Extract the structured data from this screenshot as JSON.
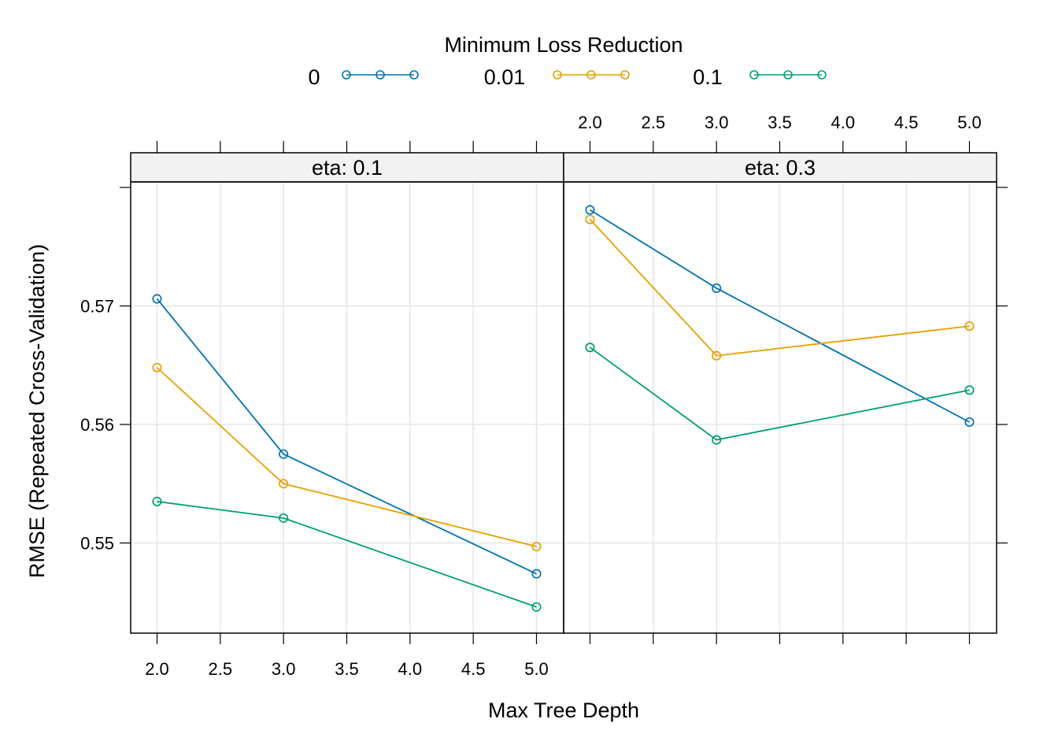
{
  "chart_data": {
    "type": "line",
    "xlabel": "Max Tree Depth",
    "ylabel": "RMSE (Repeated Cross-Validation)",
    "xlim": [
      1.8,
      5.2
    ],
    "ylim": [
      0.5416,
      0.5801
    ],
    "x_ticks": [
      2.0,
      2.5,
      3.0,
      3.5,
      4.0,
      4.5,
      5.0
    ],
    "x_tick_labels": [
      "2.0",
      "2.5",
      "3.0",
      "3.5",
      "4.0",
      "4.5",
      "5.0"
    ],
    "y_ticks": [
      0.55,
      0.56,
      0.57
    ],
    "y_tick_labels": [
      "0.55",
      "0.56",
      "0.57"
    ],
    "grid": true,
    "legend": {
      "title": "Minimum Loss Reduction",
      "placement": "top",
      "entries": [
        "0",
        "0.01",
        "0.1"
      ]
    },
    "series_colors": [
      "#0072B2",
      "#E69F00",
      "#009E73"
    ],
    "x": [
      2,
      3,
      5
    ],
    "panels": [
      {
        "strip": "eta: 0.1",
        "series": [
          {
            "name": "0",
            "values": [
              0.5706,
              0.5575,
              0.5474
            ]
          },
          {
            "name": "0.01",
            "values": [
              0.5648,
              0.555,
              0.5497
            ]
          },
          {
            "name": "0.1",
            "values": [
              0.5535,
              0.5521,
              0.5446
            ]
          }
        ]
      },
      {
        "strip": "eta: 0.3",
        "series": [
          {
            "name": "0",
            "values": [
              0.5781,
              0.5715,
              0.5602
            ]
          },
          {
            "name": "0.01",
            "values": [
              0.5773,
              0.5658,
              0.5683
            ]
          },
          {
            "name": "0.1",
            "values": [
              0.5665,
              0.5587,
              0.5629
            ]
          }
        ]
      }
    ]
  }
}
